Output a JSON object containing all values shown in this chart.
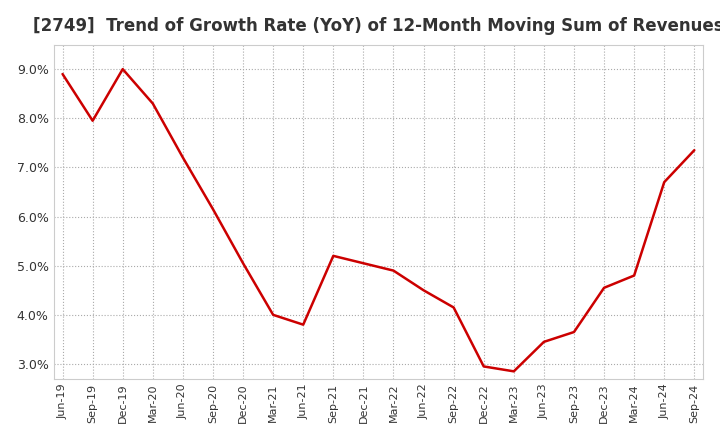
{
  "title": "[2749]  Trend of Growth Rate (YoY) of 12-Month Moving Sum of Revenues",
  "title_fontsize": 12,
  "line_color": "#cc0000",
  "background_color": "#ffffff",
  "grid_color": "#aaaaaa",
  "ylim": [
    2.7,
    9.5
  ],
  "yticks": [
    3.0,
    4.0,
    5.0,
    6.0,
    7.0,
    8.0,
    9.0
  ],
  "x_labels": [
    "Jun-19",
    "Sep-19",
    "Dec-19",
    "Mar-20",
    "Jun-20",
    "Sep-20",
    "Dec-20",
    "Mar-21",
    "Jun-21",
    "Sep-21",
    "Dec-21",
    "Mar-22",
    "Jun-22",
    "Sep-22",
    "Dec-22",
    "Mar-23",
    "Jun-23",
    "Sep-23",
    "Dec-23",
    "Mar-24",
    "Jun-24",
    "Sep-24"
  ],
  "y_values": [
    8.9,
    7.95,
    9.0,
    8.3,
    7.2,
    6.15,
    5.05,
    4.0,
    3.8,
    5.2,
    5.05,
    4.9,
    4.5,
    4.15,
    2.95,
    2.85,
    3.45,
    3.65,
    4.55,
    4.8,
    6.7,
    7.35
  ]
}
